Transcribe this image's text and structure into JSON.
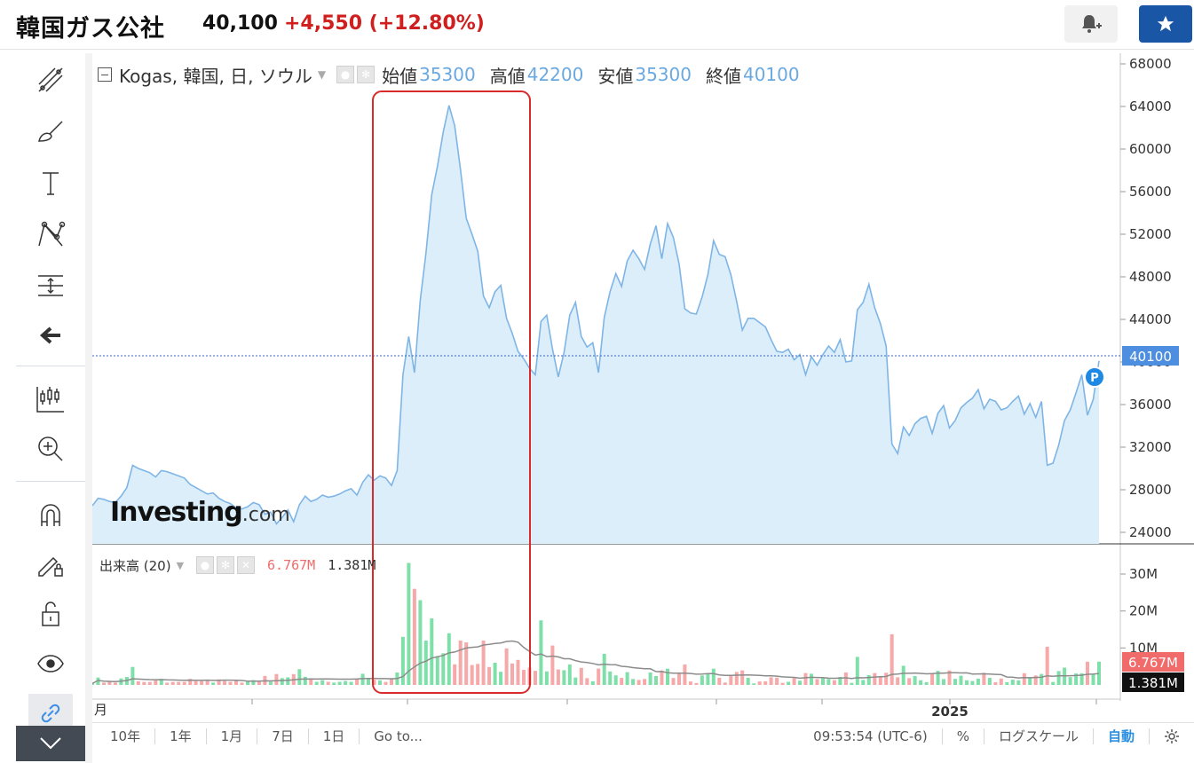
{
  "header": {
    "title": "韓国ガス公社",
    "price": "40,100",
    "change": "+4,550 (+12.80%)"
  },
  "legend": {
    "symbol": "Kogas, 韓国, 日, ソウル",
    "open_label": "始値",
    "open": "35300",
    "high_label": "高値",
    "high": "42200",
    "low_label": "安値",
    "low": "35300",
    "close_label": "終値",
    "close": "40100"
  },
  "volume_legend": {
    "label": "出来高 (20)",
    "value_red": "6.767M",
    "value_black": "1.381M"
  },
  "price_axis": {
    "ticks": [
      "68000",
      "64000",
      "60000",
      "56000",
      "52000",
      "48000",
      "44000",
      "40000",
      "36000",
      "32000",
      "28000",
      "24000"
    ],
    "current": "40100"
  },
  "volume_axis": {
    "ticks": [
      "30M",
      "20M",
      "10M"
    ],
    "current_red": "6.767M",
    "current_black": "1.381M"
  },
  "time_axis": {
    "left_label": "月",
    "year_label": "2025"
  },
  "bottom_bar": {
    "ranges": [
      "10年",
      "1年",
      "1月",
      "7日",
      "1日"
    ],
    "goto": "Go to...",
    "time": "09:53:54 (UTC-6)",
    "percent": "%",
    "log": "ログスケール",
    "auto": "自動"
  },
  "logo": {
    "main": "Investing",
    "suffix": ".com"
  },
  "colors": {
    "line": "#7fb5e6",
    "fill": "#dbeef9",
    "up": "#7ee0a8",
    "down": "#f7a8a8",
    "highlight": "#d92b2b",
    "accent": "#1a56a6"
  },
  "chart_data": {
    "type": "area",
    "ylim": [
      22000,
      69000
    ],
    "annotations": [
      "highlight-box around price spike"
    ],
    "price_series": [
      26500,
      27200,
      27100,
      26900,
      26800,
      27400,
      28200,
      30300,
      30000,
      29800,
      29600,
      29200,
      29800,
      29700,
      29500,
      29300,
      29100,
      28500,
      28200,
      27900,
      27600,
      27700,
      27200,
      26900,
      26700,
      26300,
      26200,
      26400,
      26800,
      26600,
      25700,
      25900,
      24800,
      25400,
      26100,
      25000,
      26600,
      27400,
      26900,
      27100,
      27500,
      27300,
      27400,
      27600,
      27900,
      28100,
      27500,
      28700,
      29400,
      28900,
      29300,
      29100,
      28400,
      29800,
      38800,
      42400,
      39000,
      45800,
      50200,
      55700,
      58400,
      61600,
      64100,
      62200,
      58100,
      53500,
      52000,
      50400,
      46200,
      45100,
      46600,
      47200,
      44100,
      42700,
      41000,
      40300,
      39400,
      38800,
      43800,
      44400,
      41200,
      38600,
      40900,
      44400,
      45600,
      42400,
      41400,
      41800,
      39000,
      44200,
      46600,
      48300,
      47100,
      49500,
      50500,
      49700,
      48700,
      51100,
      52800,
      49700,
      53000,
      51700,
      49200,
      45000,
      44600,
      44500,
      46100,
      48200,
      51400,
      50100,
      49900,
      48200,
      45700,
      43000,
      44100,
      44100,
      43700,
      43300,
      42100,
      41000,
      40900,
      41200,
      40200,
      40700,
      38800,
      40500,
      39700,
      40700,
      41500,
      40900,
      42100,
      40000,
      40100,
      44900,
      45600,
      47300,
      45100,
      43600,
      41500,
      32300,
      31400,
      33900,
      33100,
      34200,
      34700,
      34900,
      33300,
      35200,
      35900,
      33800,
      34500,
      35700,
      36200,
      36600,
      37400,
      35600,
      36500,
      36300,
      35500,
      35700,
      36300,
      36800,
      35100,
      36100,
      34800,
      36300,
      30300,
      30500,
      32200,
      34500,
      35500,
      37100,
      38800,
      35000,
      36500,
      40100
    ],
    "volume_note": "volume histogram below price; spike ~33M at price breakout"
  }
}
